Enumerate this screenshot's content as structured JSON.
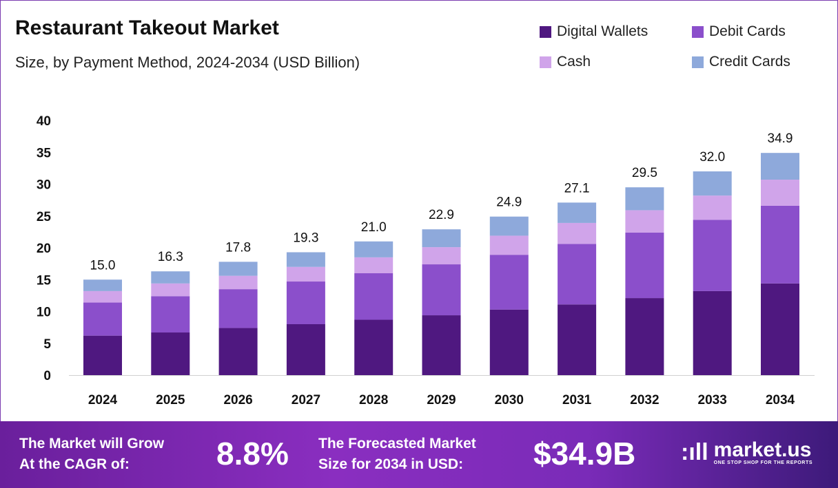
{
  "chart_data": {
    "type": "bar",
    "stacked": true,
    "title": "Restaurant Takeout Market",
    "subtitle": "Size, by Payment Method, 2024-2034 (USD Billion)",
    "categories": [
      "2024",
      "2025",
      "2026",
      "2027",
      "2028",
      "2029",
      "2030",
      "2031",
      "2032",
      "2033",
      "2034"
    ],
    "series": [
      {
        "name": "Digital Wallets",
        "color": "#4f1880",
        "values": [
          6.2,
          6.7,
          7.4,
          8.0,
          8.7,
          9.4,
          10.3,
          11.1,
          12.1,
          13.2,
          14.4
        ]
      },
      {
        "name": "Debit Cards",
        "color": "#8b4fcb",
        "values": [
          5.2,
          5.7,
          6.1,
          6.7,
          7.3,
          8.0,
          8.6,
          9.5,
          10.3,
          11.2,
          12.2
        ]
      },
      {
        "name": "Cash",
        "color": "#d0a4ea",
        "values": [
          1.8,
          2.0,
          2.1,
          2.3,
          2.5,
          2.7,
          3.0,
          3.3,
          3.5,
          3.8,
          4.1
        ]
      },
      {
        "name": "Credit Cards",
        "color": "#8ea9db",
        "values": [
          1.8,
          1.9,
          2.2,
          2.3,
          2.5,
          2.8,
          3.0,
          3.2,
          3.6,
          3.8,
          4.2
        ]
      }
    ],
    "totals": [
      "15.0",
      "16.3",
      "17.8",
      "19.3",
      "21.0",
      "22.9",
      "24.9",
      "27.1",
      "29.5",
      "32.0",
      "34.9"
    ],
    "yticks": [
      "0",
      "5",
      "10",
      "15",
      "20",
      "25",
      "30",
      "35",
      "40"
    ],
    "ylim": [
      0,
      40
    ],
    "grid": false,
    "legend_position": "top-right"
  },
  "footer": {
    "cagr_label_1": "The Market will Grow",
    "cagr_label_2": "At the CAGR of:",
    "cagr_value": "8.8%",
    "forecast_label_1": "The Forecasted Market",
    "forecast_label_2": "Size for 2034 in USD:",
    "forecast_value": "$34.9B",
    "logo_name": "market.us",
    "logo_tagline": "ONE STOP SHOP FOR THE REPORTS"
  }
}
